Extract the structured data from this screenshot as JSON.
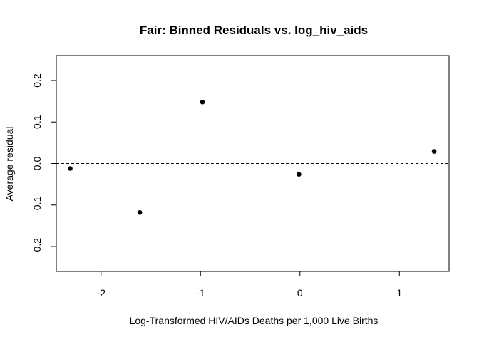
{
  "chart_data": {
    "type": "scatter",
    "title": "Fair: Binned Residuals vs. log_hiv_aids",
    "xlabel": "Log-Transformed HIV/AIDs Deaths per 1,000 Live Births",
    "ylabel": "Average residual",
    "xlim": [
      -2.45,
      1.5
    ],
    "ylim": [
      -0.26,
      0.26
    ],
    "x_ticks": [
      -2,
      -1,
      0,
      1
    ],
    "x_tick_labels": [
      "-2",
      "-1",
      "0",
      "1"
    ],
    "y_ticks": [
      -0.2,
      -0.1,
      0.0,
      0.1,
      0.2
    ],
    "y_tick_labels": [
      "-0.2",
      "-0.1",
      "0.0",
      "0.1",
      "0.2"
    ],
    "reference_line": {
      "y": 0,
      "style": "dashed"
    },
    "grid": false,
    "point_color": "#000000",
    "series": [
      {
        "x": [
          -2.31,
          -1.61,
          -0.98,
          -0.01,
          1.35
        ],
        "y": [
          -0.012,
          -0.118,
          0.148,
          -0.026,
          0.029
        ]
      }
    ]
  }
}
